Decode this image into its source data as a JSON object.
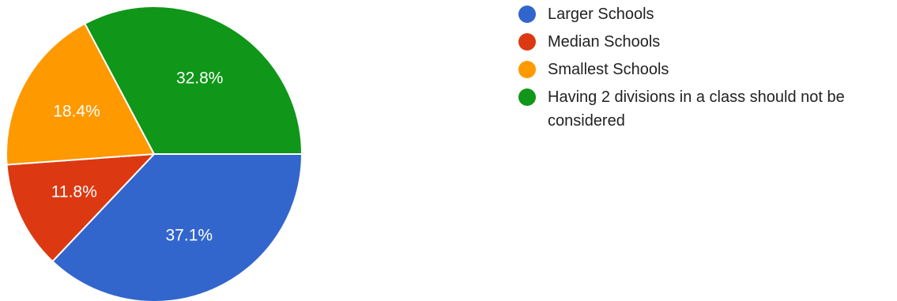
{
  "chart_data": {
    "type": "pie",
    "categories": [
      "Larger Schools",
      "Median Schools",
      "Smallest Schools",
      "Having 2 divisions in a class should not be considered"
    ],
    "values": [
      37.1,
      11.8,
      18.4,
      32.8
    ],
    "value_labels": [
      "37.1%",
      "11.8%",
      "18.4%",
      "32.8%"
    ],
    "colors": [
      "#3366cc",
      "#dc3912",
      "#ff9900",
      "#109618"
    ],
    "title": "",
    "legend_position": "right",
    "start_angle_deg": 90,
    "direction": "clockwise"
  }
}
